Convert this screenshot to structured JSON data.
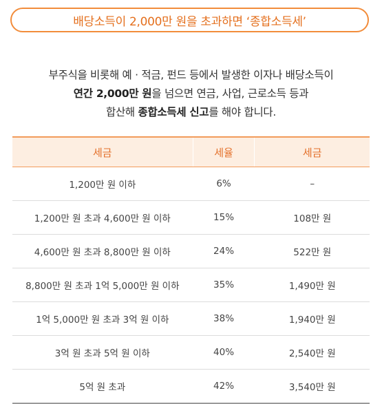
{
  "title": "배당소득이 2,000만 원을 초과하면 ‘종합소득세’",
  "intro": {
    "line1": "부주식을 비롯해 예 · 적금, 펀드 등에서 발생한 이자나 배당소득이",
    "line2_bold_a": "연간 2,000만 원",
    "line2_rest": "을 넘으면 연금, 사업, 근로소득 등과",
    "line3_pre": "합산해 ",
    "line3_bold": "종합소득세 신고",
    "line3_post": "를 해야 합니다."
  },
  "table": {
    "headers": [
      "세금",
      "세율",
      "세금"
    ],
    "rows": [
      [
        "1,200만 원 이하",
        "6%",
        "–"
      ],
      [
        "1,200만 원 초과 4,600만 원 이하",
        "15%",
        "108만 원"
      ],
      [
        "4,600만 원 초과 8,800만 원 이하",
        "24%",
        "522만 원"
      ],
      [
        "8,800만 원 초과 1억 5,000만 원 이하",
        "35%",
        "1,490만 원"
      ],
      [
        "1억 5,000만 원 초과 3억 원 이하",
        "38%",
        "1,940만 원"
      ],
      [
        "3억 원 초과 5억 원 이하",
        "40%",
        "2,540만 원"
      ],
      [
        "5억 원 초과",
        "42%",
        "3,540만 원"
      ]
    ]
  },
  "colors": {
    "accent": "#f28c3a",
    "header_bg": "#fdeee1",
    "header_text": "#e4702a"
  }
}
